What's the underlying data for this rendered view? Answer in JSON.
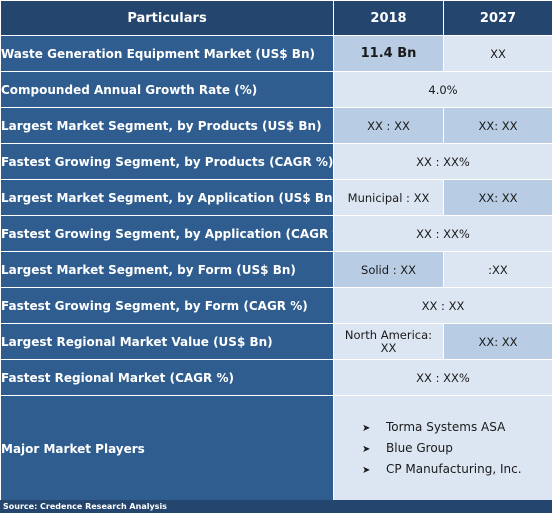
{
  "header": {
    "col1": "Particulars",
    "col2": "2018",
    "col3": "2027"
  },
  "rows": [
    {
      "label": "Waste Generation Equipment Market (US$ Bn)",
      "v2018": "11.4 Bn",
      "v2027": "XX"
    },
    {
      "label": "Compounded Annual Growth Rate (%)",
      "merged": "4.0%"
    },
    {
      "label": "Largest Market Segment, by Products (US$ Bn)",
      "v2018": "XX : XX",
      "v2027": "XX: XX"
    },
    {
      "label": "Fastest Growing Segment, by Products (CAGR %)",
      "merged": "XX : XX%"
    },
    {
      "label": "Largest Market Segment, by Application (US$ Bn)",
      "v2018": "Municipal : XX",
      "v2027": "XX: XX"
    },
    {
      "label": "Fastest Growing Segment, by Application (CAGR %)",
      "merged": "XX : XX%"
    },
    {
      "label": "Largest Market Segment, by Form (US$ Bn)",
      "v2018": "Solid : XX",
      "v2027": ":XX"
    },
    {
      "label": "Fastest Growing Segment, by Form (CAGR %)",
      "merged": "XX : XX"
    },
    {
      "label": "Largest Regional Market Value (US$ Bn)",
      "v2018_line1": "North America:",
      "v2018_line2": "XX",
      "v2027": "XX: XX"
    },
    {
      "label": "Fastest Regional Market (CAGR %)",
      "merged": "XX : XX%"
    }
  ],
  "players": {
    "label": "Major Market Players",
    "bullet": "➤",
    "items": [
      "Torma Systems ASA",
      "Blue Group",
      "CP Manufacturing, Inc."
    ]
  },
  "source": "Source: Credence Research Analysis",
  "colors": {
    "header_bg": "#24466e",
    "label_bg": "#2f5d8f",
    "cell_light": "#dce6f2",
    "cell_mid": "#b8cce4"
  }
}
